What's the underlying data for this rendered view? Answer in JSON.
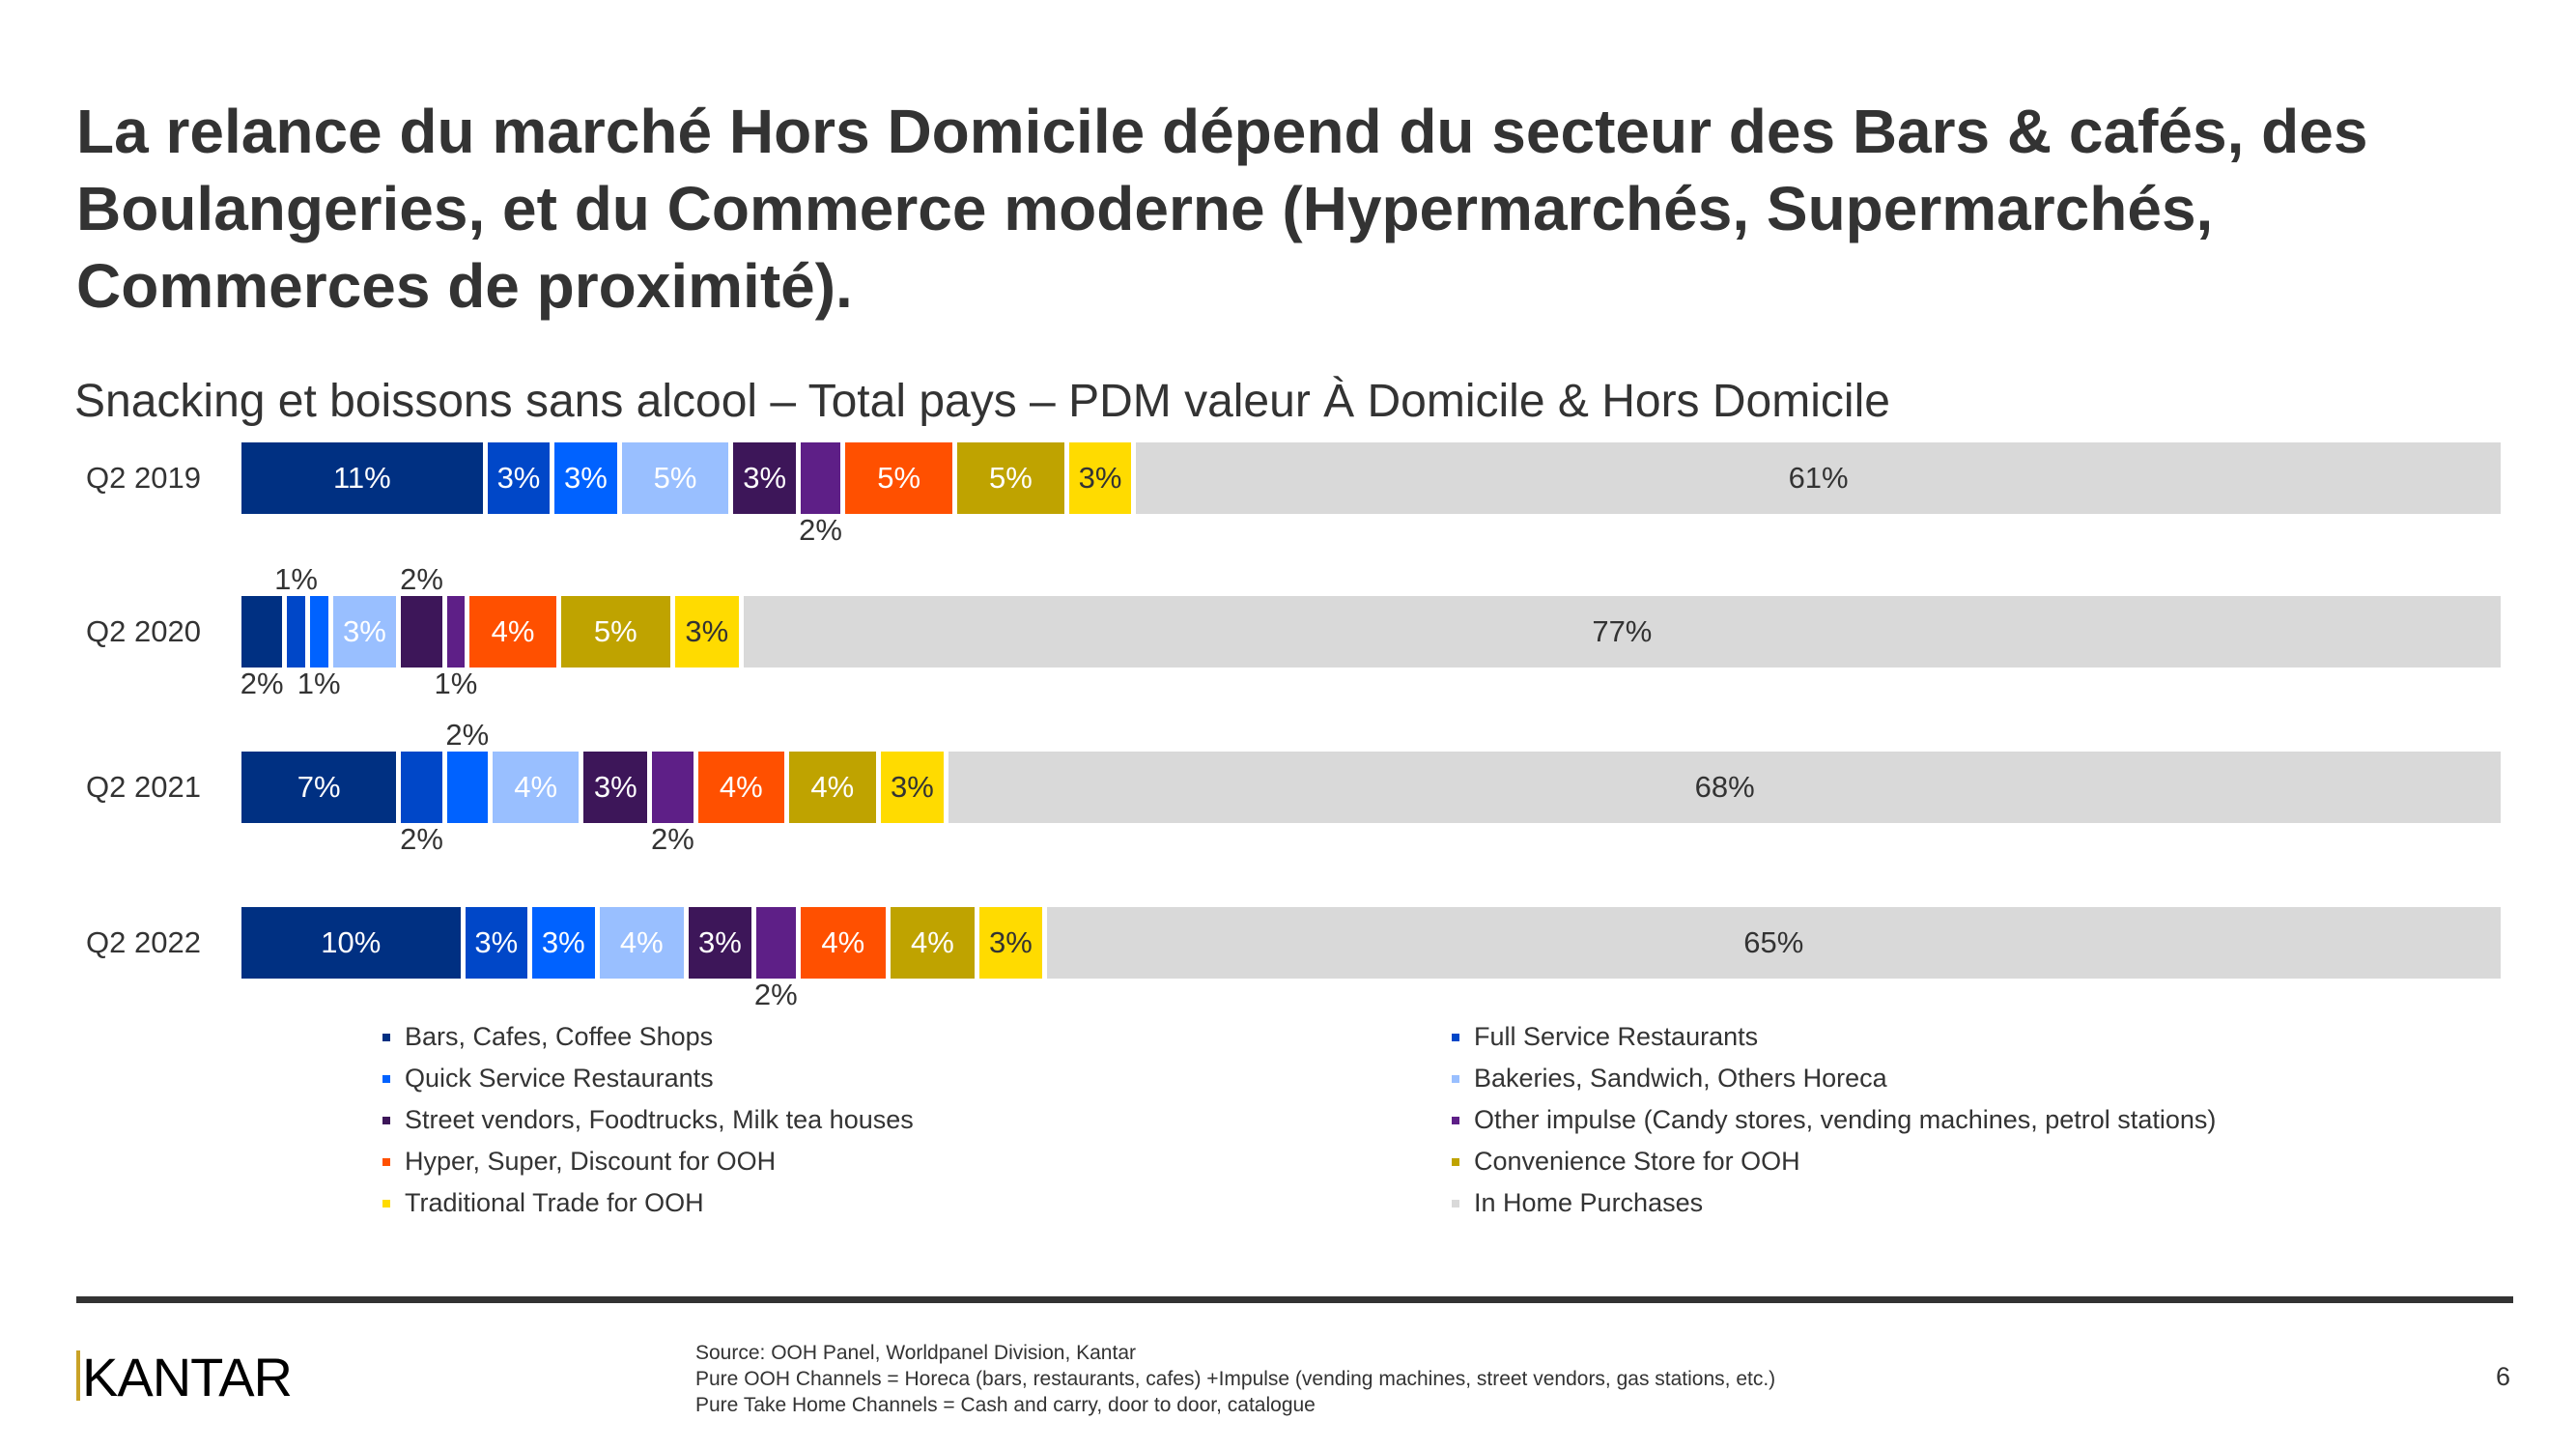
{
  "title": "La relance du marché Hors Domicile dépend du secteur des Bars & cafés, des Boulangeries, et du Commerce moderne (Hypermarchés, Supermarchés, Commerces de proximité).",
  "chart_data": {
    "type": "bar",
    "orientation": "horizontal",
    "stacked": "100%",
    "title": "Snacking et boissons sans alcool – Total pays – PDM valeur À Domicile & Hors Domicile",
    "categories": [
      "Q2 2019",
      "Q2 2020",
      "Q2 2021",
      "Q2 2022"
    ],
    "unit": "%",
    "legend_position": "bottom",
    "series": [
      {
        "name": "Bars, Cafes, Coffee Shops",
        "color": "#003082",
        "values": [
          11,
          2,
          7,
          10
        ]
      },
      {
        "name": "Full Service Restaurants",
        "color": "#0047c8",
        "values": [
          3,
          1,
          2,
          3
        ]
      },
      {
        "name": "Quick Service Restaurants",
        "color": "#0062ff",
        "values": [
          3,
          1,
          2,
          3
        ]
      },
      {
        "name": "Bakeries, Sandwich, Others Horeca",
        "color": "#99bfff",
        "values": [
          5,
          3,
          4,
          4
        ]
      },
      {
        "name": "Street vendors, Foodtrucks, Milk tea houses",
        "color": "#3d1659",
        "values": [
          3,
          2,
          3,
          3
        ]
      },
      {
        "name": "Other impulse (Candy stores, vending machines, petrol stations)",
        "color": "#5e1f87",
        "values": [
          2,
          1,
          2,
          2
        ]
      },
      {
        "name": "Hyper, Super, Discount for OOH",
        "color": "#ff5000",
        "values": [
          5,
          4,
          4,
          4
        ]
      },
      {
        "name": "Convenience Store for OOH",
        "color": "#bfa300",
        "values": [
          5,
          5,
          4,
          4
        ]
      },
      {
        "name": "Traditional Trade for OOH",
        "color": "#ffdb00",
        "values": [
          3,
          3,
          3,
          3
        ]
      },
      {
        "name": "In Home Purchases",
        "color": "#d9d9d9",
        "values": [
          61,
          77,
          68,
          65
        ]
      }
    ]
  },
  "footer": {
    "logo": "KANTAR",
    "source_lines": [
      "Source: OOH Panel, Worldpanel Division, Kantar",
      "Pure OOH Channels = Horeca (bars, restaurants, cafes) +Impulse (vending machines, street vendors, gas stations, etc.)",
      "Pure Take Home Channels = Cash and carry, door to door, catalogue"
    ],
    "page_number": "6"
  }
}
